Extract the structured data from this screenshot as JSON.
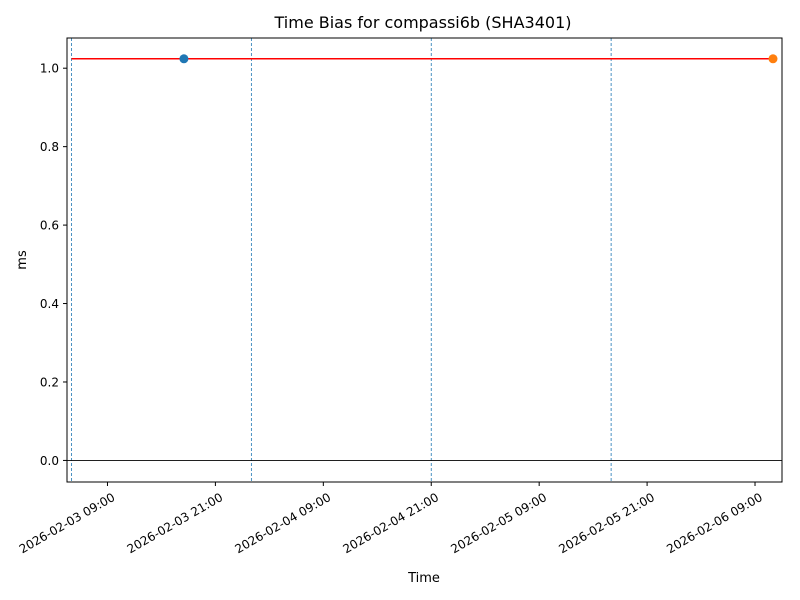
{
  "chart_data": {
    "type": "line",
    "title": "Time Bias for compassi6b (SHA3401)",
    "xlabel": "Time",
    "ylabel": "ms",
    "xlim": [
      "2026-02-03 04:30",
      "2026-02-06 12:00"
    ],
    "ylim": [
      -0.055,
      1.077
    ],
    "yticks": [
      {
        "value": 0.0,
        "label": "0.0"
      },
      {
        "value": 0.2,
        "label": "0.2"
      },
      {
        "value": 0.4,
        "label": "0.4"
      },
      {
        "value": 0.6,
        "label": "0.6"
      },
      {
        "value": 0.8,
        "label": "0.8"
      },
      {
        "value": 1.0,
        "label": "1.0"
      }
    ],
    "xticks": [
      {
        "value": "2026-02-03 09:00",
        "label": "2026-02-03 09:00"
      },
      {
        "value": "2026-02-03 21:00",
        "label": "2026-02-03 21:00"
      },
      {
        "value": "2026-02-04 09:00",
        "label": "2026-02-04 09:00"
      },
      {
        "value": "2026-02-04 21:00",
        "label": "2026-02-04 21:00"
      },
      {
        "value": "2026-02-05 09:00",
        "label": "2026-02-05 09:00"
      },
      {
        "value": "2026-02-05 21:00",
        "label": "2026-02-05 21:00"
      },
      {
        "value": "2026-02-06 09:00",
        "label": "2026-02-06 09:00"
      }
    ],
    "series": [
      {
        "color": "#ff0000",
        "style": "line",
        "points": [
          {
            "x": "2026-02-03 05:00",
            "y": 1.024
          },
          {
            "x": "2026-02-06 11:00",
            "y": 1.024
          }
        ]
      },
      {
        "color": "#1f77b4",
        "style": "point",
        "points": [
          {
            "x": "2026-02-03 17:30",
            "y": 1.024
          }
        ]
      },
      {
        "color": "#ff7f0e",
        "style": "point",
        "points": [
          {
            "x": "2026-02-06 11:00",
            "y": 1.024
          }
        ]
      }
    ],
    "vlines": [
      "2026-02-03 05:00",
      "2026-02-04 01:00",
      "2026-02-04 21:00",
      "2026-02-05 17:00"
    ],
    "hline": 0.0,
    "grid": false,
    "colors": {
      "vline": "#1f77b4",
      "hline": "#000000"
    }
  }
}
